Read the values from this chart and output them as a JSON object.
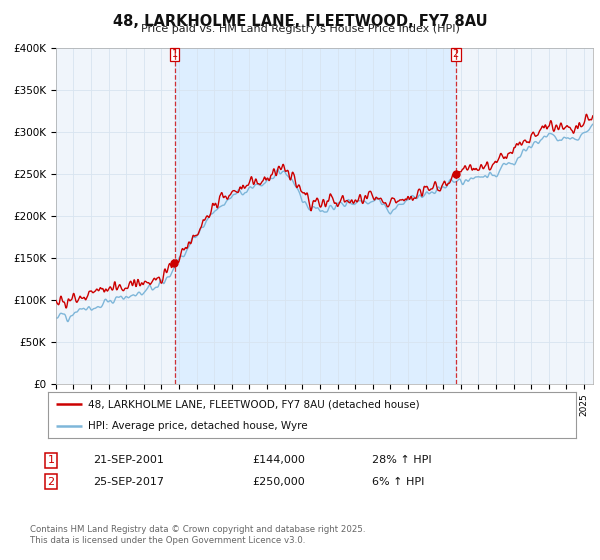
{
  "title": "48, LARKHOLME LANE, FLEETWOOD, FY7 8AU",
  "subtitle": "Price paid vs. HM Land Registry's House Price Index (HPI)",
  "ylabel_ticks": [
    "£0",
    "£50K",
    "£100K",
    "£150K",
    "£200K",
    "£250K",
    "£300K",
    "£350K",
    "£400K"
  ],
  "ylim": [
    0,
    400000
  ],
  "xlim_start": 1995.0,
  "xlim_end": 2025.5,
  "red_color": "#cc0000",
  "blue_color": "#7eb6d9",
  "shade_color": "#ddeeff",
  "marker1_x": 2001.75,
  "marker2_x": 2017.72,
  "legend_label_red": "48, LARKHOLME LANE, FLEETWOOD, FY7 8AU (detached house)",
  "legend_label_blue": "HPI: Average price, detached house, Wyre",
  "sale1_date": "21-SEP-2001",
  "sale1_price": "£144,000",
  "sale1_hpi": "28% ↑ HPI",
  "sale2_date": "25-SEP-2017",
  "sale2_price": "£250,000",
  "sale2_hpi": "6% ↑ HPI",
  "footer": "Contains HM Land Registry data © Crown copyright and database right 2025.\nThis data is licensed under the Open Government Licence v3.0.",
  "background_color": "#ffffff",
  "grid_color": "#d8e4f0"
}
